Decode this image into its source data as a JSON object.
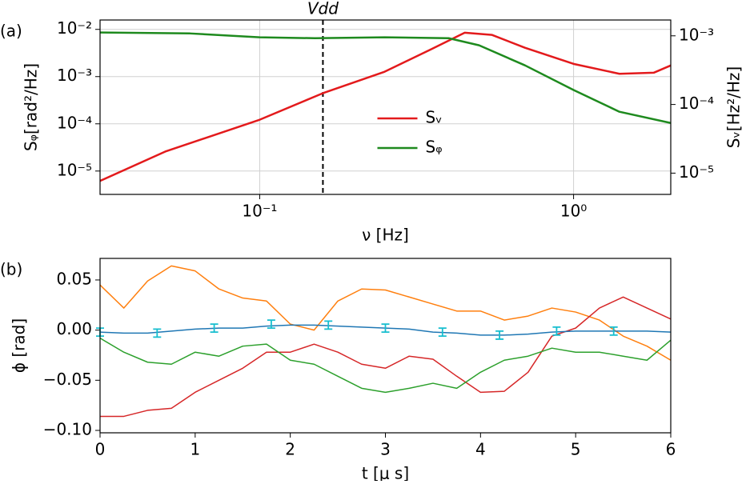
{
  "chart_data": [
    {
      "type": "line",
      "panel_label": "(a)",
      "xlabel": "ν [Hz]",
      "ylabel": "Sᵩ[rad²/Hz]",
      "y2label": "Sᵥ[Hz²/Hz]",
      "xscale": "log",
      "yscale": "log",
      "y2scale": "log",
      "grid": true,
      "legend": "center",
      "xlim": [
        0.031,
        2.04
      ],
      "ylim": [
        3.2e-06,
        0.0158
      ],
      "y2lim": [
        4.9e-06,
        0.0017
      ],
      "xticks": [
        {
          "value": 0.1,
          "label": "10⁻¹"
        },
        {
          "value": 1,
          "label": "10⁰"
        }
      ],
      "yticks": [
        {
          "value": 1e-05,
          "label": "10⁻⁵"
        },
        {
          "value": 0.0001,
          "label": "10⁻⁴"
        },
        {
          "value": 0.001,
          "label": "10⁻³"
        },
        {
          "value": 0.01,
          "label": "10⁻²"
        }
      ],
      "y2ticks": [
        {
          "value": 1e-05,
          "label": "10⁻⁵"
        },
        {
          "value": 0.0001,
          "label": "10⁻⁴"
        },
        {
          "value": 0.001,
          "label": "10⁻³"
        }
      ],
      "annotation": {
        "text": "Vdd",
        "x": 0.159
      },
      "series": [
        {
          "name": "Sᵥ",
          "color": "#e31a1c",
          "axis": "y2",
          "x": [
            0.031,
            0.05,
            0.1,
            0.159,
            0.25,
            0.35,
            0.45,
            0.55,
            0.7,
            1.0,
            1.4,
            1.8,
            2.04
          ],
          "values": [
            7.7e-06,
            2.06e-05,
            6e-05,
            0.000146,
            0.0003,
            0.00063,
            0.00111,
            0.00103,
            0.00067,
            0.00039,
            0.00028,
            0.00029,
            0.00037
          ]
        },
        {
          "name": "Sᵩ",
          "color": "#1e8a1e",
          "x": [
            0.031,
            0.06,
            0.1,
            0.15,
            0.25,
            0.4,
            0.5,
            0.7,
            1.0,
            1.4,
            2.04
          ],
          "values": [
            0.0086,
            0.0082,
            0.0068,
            0.0065,
            0.0068,
            0.0065,
            0.0046,
            0.00173,
            0.00052,
            0.00018,
            0.000104
          ]
        }
      ]
    },
    {
      "type": "line",
      "panel_label": "(b)",
      "xlabel": "t [μ s]",
      "ylabel": "ϕ [rad]",
      "xlim": [
        0,
        6
      ],
      "ylim": [
        -0.1024,
        0.0715
      ],
      "xticks": [
        0,
        1,
        2,
        3,
        4,
        5,
        6
      ],
      "yticks": [
        {
          "value": -0.1,
          "label": "−0.10"
        },
        {
          "value": -0.05,
          "label": "−0.05"
        },
        {
          "value": 0,
          "label": "0.00"
        },
        {
          "value": 0.05,
          "label": "0.05"
        }
      ],
      "x": [
        0,
        0.25,
        0.5,
        0.75,
        1,
        1.25,
        1.5,
        1.75,
        2,
        2.25,
        2.5,
        2.75,
        3,
        3.25,
        3.5,
        3.75,
        4,
        4.25,
        4.5,
        4.75,
        5,
        5.25,
        5.5,
        5.75,
        6
      ],
      "series": [
        {
          "color": "#ff7f0e",
          "values": [
            0.045,
            0.022,
            0.049,
            0.064,
            0.059,
            0.041,
            0.032,
            0.029,
            0.006,
            0.0,
            0.029,
            0.041,
            0.04,
            0.033,
            0.026,
            0.019,
            0.019,
            0.01,
            0.014,
            0.022,
            0.018,
            0.01,
            -0.006,
            -0.016,
            -0.03
          ]
        },
        {
          "color": "#d62728",
          "values": [
            -0.086,
            -0.086,
            -0.08,
            -0.078,
            -0.062,
            -0.05,
            -0.038,
            -0.022,
            -0.022,
            -0.014,
            -0.022,
            -0.034,
            -0.038,
            -0.026,
            -0.029,
            -0.046,
            -0.062,
            -0.061,
            -0.042,
            -0.006,
            0.002,
            0.022,
            0.033,
            0.022,
            0.011
          ]
        },
        {
          "color": "#2ca02c",
          "values": [
            -0.008,
            -0.022,
            -0.032,
            -0.034,
            -0.022,
            -0.026,
            -0.016,
            -0.014,
            -0.03,
            -0.034,
            -0.046,
            -0.058,
            -0.062,
            -0.058,
            -0.053,
            -0.058,
            -0.042,
            -0.03,
            -0.026,
            -0.018,
            -0.022,
            -0.022,
            -0.026,
            -0.03,
            -0.01
          ]
        },
        {
          "color": "#1f77b4",
          "values": [
            -0.002,
            -0.003,
            -0.003,
            -0.001,
            0.001,
            0.002,
            0.002,
            0.004,
            0.005,
            0.005,
            0.004,
            0.003,
            0.002,
            0.001,
            -0.002,
            -0.003,
            -0.005,
            -0.005,
            -0.004,
            -0.002,
            -0.001,
            -0.001,
            -0.001,
            -0.001,
            -0.002
          ]
        }
      ],
      "errorbars": {
        "color": "#17becf",
        "x": [
          0,
          0.6,
          1.2,
          1.8,
          2.4,
          3.0,
          3.6,
          4.2,
          4.8,
          5.4
        ],
        "values": [
          -0.002,
          -0.003,
          0.002,
          0.006,
          0.005,
          0.002,
          -0.002,
          -0.005,
          -0.001,
          -0.001
        ],
        "errors": [
          0.004,
          0.004,
          0.004,
          0.004,
          0.004,
          0.004,
          0.004,
          0.004,
          0.004,
          0.004
        ]
      }
    }
  ]
}
